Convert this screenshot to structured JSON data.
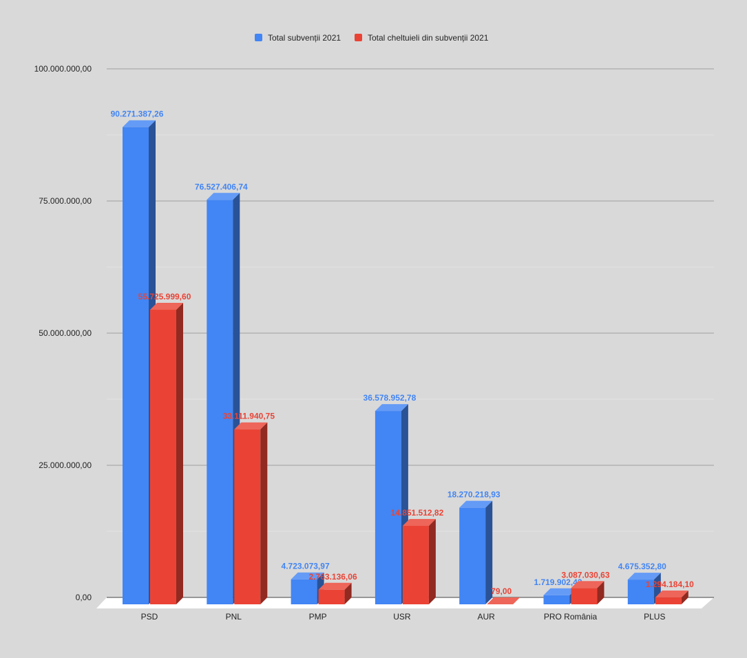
{
  "chart_data": {
    "type": "bar",
    "style": "3d-clustered-column",
    "categories": [
      "PSD",
      "PNL",
      "PMP",
      "USR",
      "AUR",
      "PRO România",
      "PLUS"
    ],
    "series": [
      {
        "name": "Total subvenții 2021",
        "color": "#4285f4",
        "values": [
          90271387.26,
          76527406.74,
          4723073.97,
          36578952.78,
          18270218.93,
          1719902.43,
          4675352.8
        ],
        "labels": [
          "90.271.387,26",
          "76.527.406,74",
          "4.723.073,97",
          "36.578.952,78",
          "18.270.218,93",
          "1.719.902,43",
          "4.675.352,80"
        ]
      },
      {
        "name": "Total cheltuieli din subvenții 2021",
        "color": "#ea4335",
        "values": [
          55725999.6,
          33111940.75,
          2763136.06,
          14851512.82,
          79.0,
          3087030.63,
          1294184.1
        ],
        "labels": [
          "55.725.999,60",
          "33.111.940,75",
          "2.763.136,06",
          "14.851.512,82",
          "79,00",
          "3.087.030,63",
          "1.294.184,10"
        ]
      }
    ],
    "y_ticks": [
      {
        "value": 0,
        "label": "0,00"
      },
      {
        "value": 25000000,
        "label": "25.000.000,00"
      },
      {
        "value": 50000000,
        "label": "50.000.000,00"
      },
      {
        "value": 75000000,
        "label": "75.000.000,00"
      },
      {
        "value": 100000000,
        "label": "100.000.000,00"
      }
    ],
    "ylim": [
      0,
      100000000
    ],
    "legend_position": "top",
    "grid": true,
    "background": "#d9d9d9"
  }
}
